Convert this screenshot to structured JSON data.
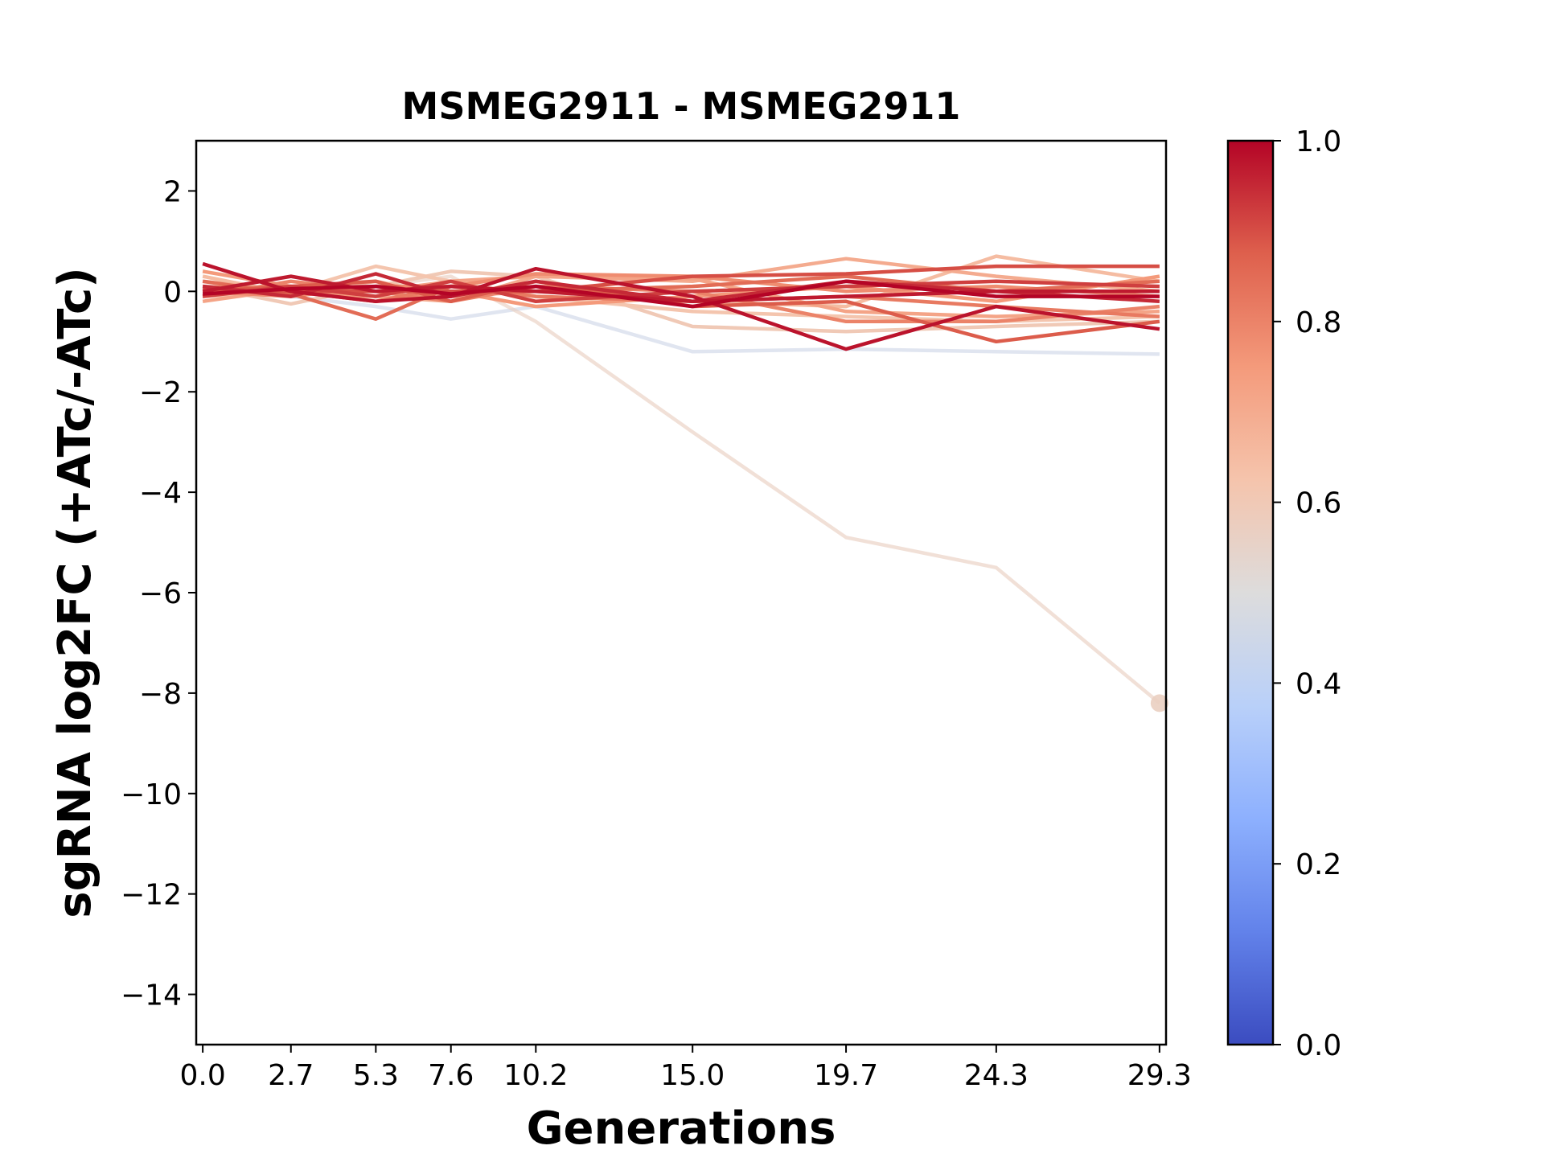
{
  "chart_data": {
    "type": "line",
    "title": "MSMEG2911 - MSMEG2911",
    "xlabel": "Generations",
    "ylabel": "sgRNA log2FC (+ATc/-ATc)",
    "x": [
      0.0,
      2.7,
      5.3,
      7.6,
      10.2,
      15.0,
      19.7,
      24.3,
      29.3
    ],
    "x_tick_labels": [
      "0.0",
      "2.7",
      "5.3",
      "7.6",
      "10.2",
      "15.0",
      "19.7",
      "24.3",
      "29.3"
    ],
    "xlim": [
      -0.2,
      29.5
    ],
    "ylim": [
      -15,
      3
    ],
    "y_ticks": [
      2,
      0,
      -2,
      -4,
      -6,
      -8,
      -10,
      -12,
      -14
    ],
    "y_tick_labels": [
      "2",
      "0",
      "−2",
      "−4",
      "−6",
      "−8",
      "−10",
      "−12",
      "−14"
    ],
    "grid": false,
    "colorbar": {
      "colormap": "coolwarm",
      "range": [
        0.0,
        1.0
      ],
      "ticks": [
        0.0,
        0.2,
        0.4,
        0.6,
        0.8,
        1.0
      ],
      "tick_labels": [
        "0.0",
        "0.2",
        "0.4",
        "0.6",
        "0.8",
        "1.0"
      ],
      "stops": [
        "#3b4cc0",
        "#6282ea",
        "#8db0fe",
        "#b9d0f9",
        "#dddcdc",
        "#f5c4ac",
        "#f49a7b",
        "#de604d",
        "#b40426"
      ]
    },
    "series": [
      {
        "color_value": 0.57,
        "values": [
          -0.05,
          0.05,
          0.1,
          0.3,
          -0.6,
          -2.8,
          -4.9,
          -5.5,
          -8.2
        ],
        "end_marker": true
      },
      {
        "color_value": 0.45,
        "values": [
          0.0,
          -0.1,
          -0.3,
          -0.55,
          -0.3,
          -1.2,
          -1.15,
          -1.2,
          -1.25
        ]
      },
      {
        "color_value": 0.6,
        "values": [
          0.1,
          -0.25,
          0.1,
          0.4,
          0.3,
          -0.7,
          -0.8,
          -0.7,
          -0.6
        ]
      },
      {
        "color_value": 0.62,
        "values": [
          -0.1,
          0.0,
          0.5,
          0.2,
          -0.1,
          -0.4,
          -0.5,
          -0.6,
          -0.5
        ]
      },
      {
        "color_value": 0.7,
        "values": [
          0.2,
          0.0,
          -0.1,
          -0.2,
          0.3,
          0.2,
          0.65,
          0.3,
          0.0
        ]
      },
      {
        "color_value": 0.65,
        "values": [
          0.3,
          -0.05,
          0.2,
          -0.1,
          0.0,
          -0.2,
          -0.3,
          0.7,
          0.2
        ]
      },
      {
        "color_value": 0.72,
        "values": [
          -0.2,
          0.05,
          0.0,
          0.2,
          0.3,
          0.25,
          -0.4,
          -0.5,
          -0.4
        ]
      },
      {
        "color_value": 0.75,
        "values": [
          0.4,
          0.1,
          -0.2,
          0.0,
          -0.3,
          -0.1,
          0.1,
          -0.2,
          0.3
        ]
      },
      {
        "color_value": 0.78,
        "values": [
          0.0,
          -0.1,
          0.1,
          0.1,
          0.35,
          0.3,
          0.0,
          0.1,
          -0.1
        ]
      },
      {
        "color_value": 0.8,
        "values": [
          -0.1,
          0.2,
          0.0,
          -0.2,
          0.1,
          0.0,
          -0.6,
          -0.6,
          -0.3
        ]
      },
      {
        "color_value": 0.82,
        "values": [
          0.1,
          0.0,
          -0.2,
          0.1,
          -0.1,
          -0.2,
          -0.1,
          -0.3,
          -0.5
        ]
      },
      {
        "color_value": 0.85,
        "values": [
          0.2,
          -0.05,
          -0.55,
          0.1,
          0.0,
          0.1,
          0.3,
          0.0,
          0.2
        ]
      },
      {
        "color_value": 0.88,
        "values": [
          0.0,
          0.1,
          0.2,
          -0.2,
          0.2,
          -0.3,
          -0.2,
          -1.0,
          -0.6
        ]
      },
      {
        "color_value": 0.9,
        "values": [
          0.05,
          0.0,
          0.0,
          0.0,
          0.0,
          0.3,
          0.35,
          0.5,
          0.5
        ]
      },
      {
        "color_value": 0.92,
        "values": [
          -0.1,
          0.1,
          -0.1,
          0.2,
          -0.2,
          0.0,
          0.1,
          0.2,
          0.1
        ]
      },
      {
        "color_value": 0.95,
        "values": [
          0.1,
          -0.1,
          0.35,
          -0.1,
          0.2,
          -0.2,
          0.2,
          0.0,
          -0.2
        ]
      },
      {
        "color_value": 0.97,
        "values": [
          0.0,
          0.3,
          0.0,
          0.1,
          0.0,
          -0.2,
          -0.1,
          0.0,
          0.0
        ]
      },
      {
        "color_value": 0.98,
        "values": [
          0.55,
          0.0,
          -0.2,
          -0.1,
          0.45,
          -0.1,
          -1.15,
          -0.3,
          -0.75
        ]
      },
      {
        "color_value": 1.0,
        "values": [
          -0.05,
          0.05,
          0.1,
          -0.05,
          0.1,
          -0.3,
          0.2,
          -0.1,
          -0.1
        ]
      }
    ]
  }
}
